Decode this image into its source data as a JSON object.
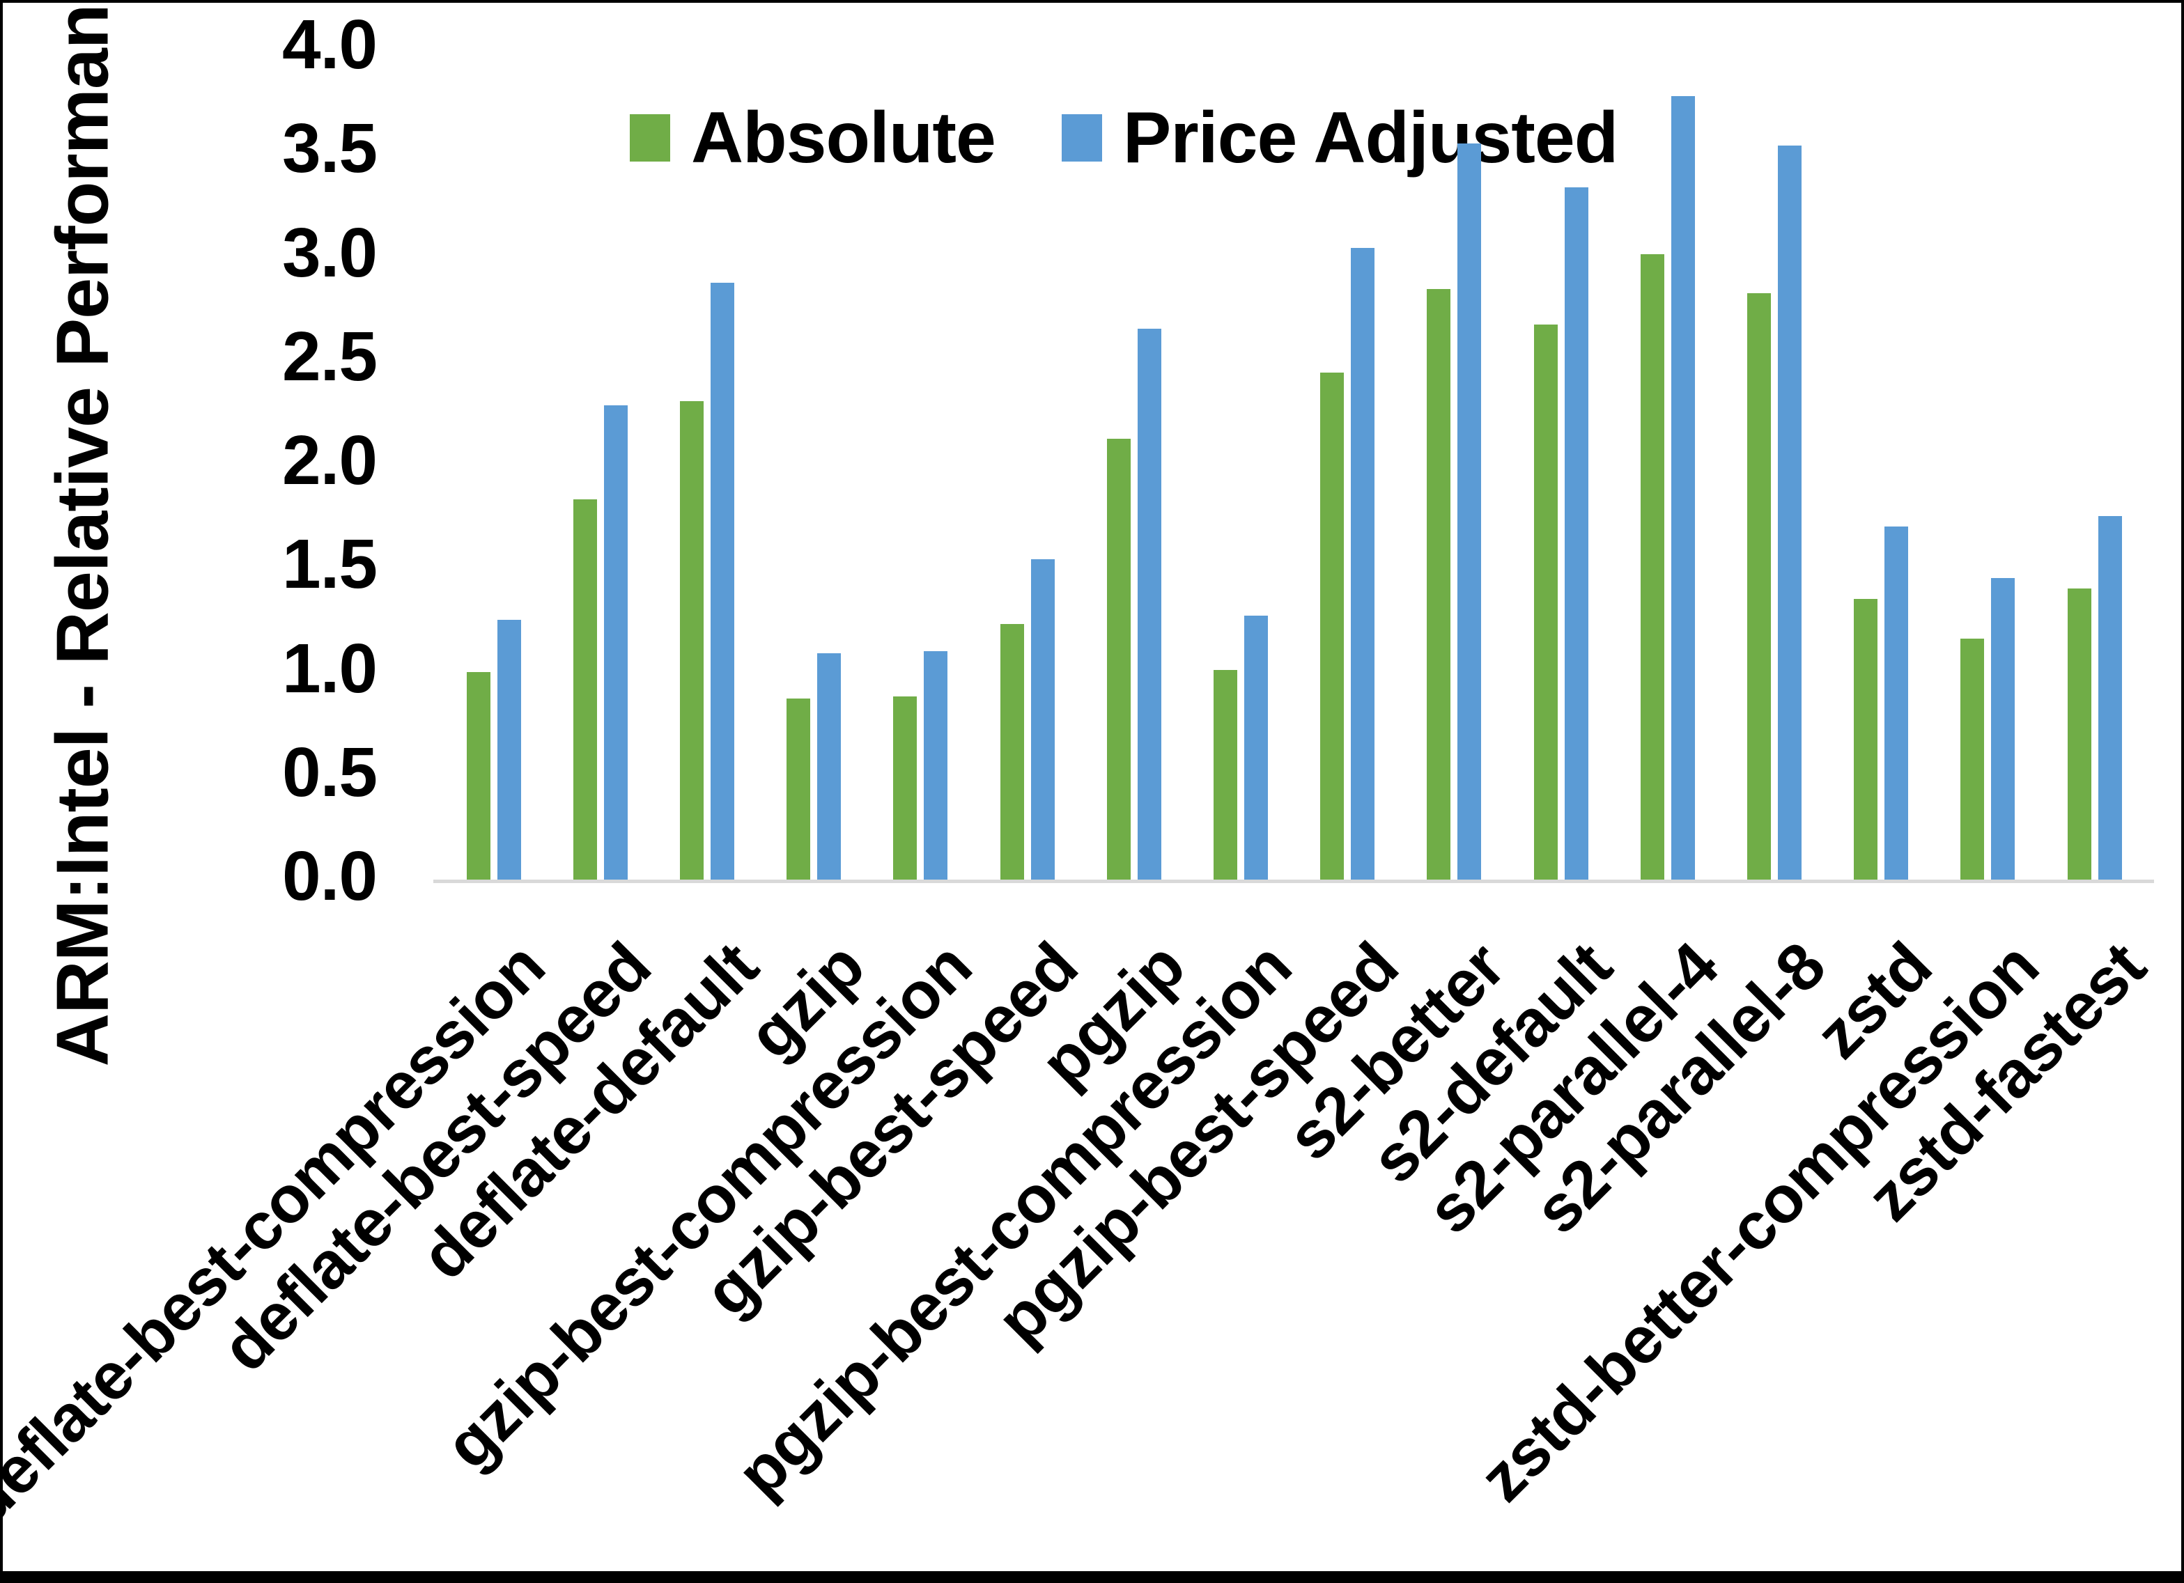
{
  "chart_data": {
    "type": "bar",
    "title": "",
    "xlabel": "",
    "ylabel": "ARM:Intel - Relative Performance",
    "ylim": [
      0.0,
      4.0
    ],
    "ytick_step": 0.5,
    "yticks": [
      "0.0",
      "0.5",
      "1.0",
      "1.5",
      "2.0",
      "2.5",
      "3.0",
      "3.5",
      "4.0"
    ],
    "grid": false,
    "legend_position": "top",
    "axis_line_color": "#D9D9D9",
    "categories": [
      "deflate-best-compression",
      "deflate-best-speed",
      "deflate-default",
      "gzip",
      "gzip-best-compression",
      "gzip-best-speed",
      "pgzip",
      "pgzip-best-compression",
      "pgzip-best-speed",
      "s2-better",
      "s2-default",
      "s2-parallel-4",
      "s2-parallel-8",
      "zstd",
      "zstd-better-compression",
      "zstd-fastest"
    ],
    "series": [
      {
        "name": "Absolute",
        "color": "#70AD47",
        "values": [
          1.0,
          1.83,
          2.3,
          0.87,
          0.88,
          1.23,
          2.12,
          1.01,
          2.44,
          2.84,
          2.67,
          3.01,
          2.82,
          1.35,
          1.16,
          1.4
        ]
      },
      {
        "name": "Price Adjusted",
        "color": "#5B9BD5",
        "values": [
          1.25,
          2.28,
          2.87,
          1.09,
          1.1,
          1.54,
          2.65,
          1.27,
          3.04,
          3.54,
          3.33,
          3.77,
          3.53,
          1.7,
          1.45,
          1.75
        ]
      }
    ]
  }
}
